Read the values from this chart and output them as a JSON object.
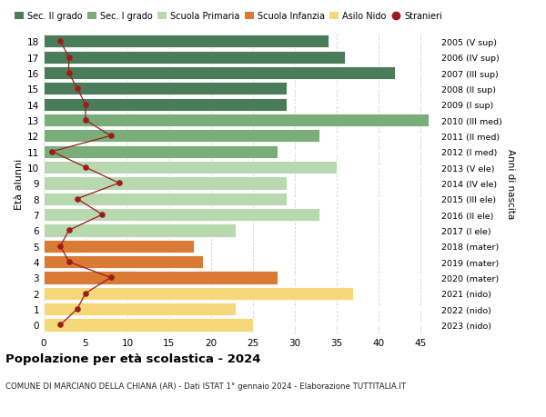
{
  "ages": [
    18,
    17,
    16,
    15,
    14,
    13,
    12,
    11,
    10,
    9,
    8,
    7,
    6,
    5,
    4,
    3,
    2,
    1,
    0
  ],
  "labels_right": [
    "2005 (V sup)",
    "2006 (IV sup)",
    "2007 (III sup)",
    "2008 (II sup)",
    "2009 (I sup)",
    "2010 (III med)",
    "2011 (II med)",
    "2012 (I med)",
    "2013 (V ele)",
    "2014 (IV ele)",
    "2015 (III ele)",
    "2016 (II ele)",
    "2017 (I ele)",
    "2018 (mater)",
    "2019 (mater)",
    "2020 (mater)",
    "2021 (nido)",
    "2022 (nido)",
    "2023 (nido)"
  ],
  "bar_values": [
    34,
    36,
    42,
    29,
    29,
    46,
    33,
    28,
    35,
    29,
    29,
    33,
    23,
    18,
    19,
    28,
    37,
    23,
    25
  ],
  "bar_colors": [
    "#4a7c59",
    "#4a7c59",
    "#4a7c59",
    "#4a7c59",
    "#4a7c59",
    "#7aad7a",
    "#7aad7a",
    "#7aad7a",
    "#b8d8b0",
    "#b8d8b0",
    "#b8d8b0",
    "#b8d8b0",
    "#b8d8b0",
    "#d97b34",
    "#d97b34",
    "#d97b34",
    "#f5d87a",
    "#f5d87a",
    "#f5d87a"
  ],
  "stranieri_values": [
    2,
    3,
    3,
    4,
    5,
    5,
    8,
    1,
    5,
    9,
    4,
    7,
    3,
    2,
    3,
    8,
    5,
    4,
    2
  ],
  "legend_labels": [
    "Sec. II grado",
    "Sec. I grado",
    "Scuola Primaria",
    "Scuola Infanzia",
    "Asilo Nido",
    "Stranieri"
  ],
  "legend_colors": [
    "#4a7c59",
    "#7aad7a",
    "#b8d8b0",
    "#d97b34",
    "#f5d87a",
    "#9b1c1c"
  ],
  "ylabel_left": "Età alunni",
  "ylabel_right": "Anni di nascita",
  "title": "Popolazione per età scolastica - 2024",
  "subtitle": "COMUNE DI MARCIANO DELLA CHIANA (AR) - Dati ISTAT 1° gennaio 2024 - Elaborazione TUTTITALIA.IT",
  "xlim": [
    0,
    47
  ],
  "xticks": [
    0,
    5,
    10,
    15,
    20,
    25,
    30,
    35,
    40,
    45
  ],
  "bg_color": "#ffffff",
  "grid_color": "#cccccc"
}
